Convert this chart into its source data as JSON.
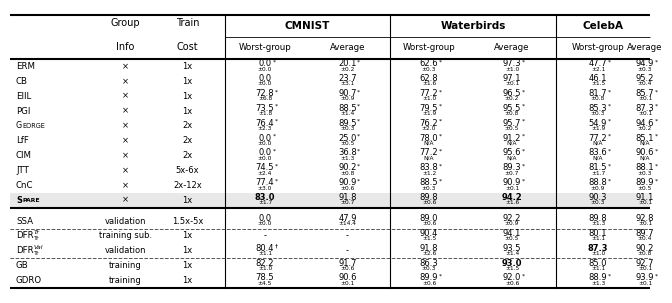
{
  "rows_section1": [
    [
      "ERM",
      "x",
      "1x",
      "0.0",
      "*",
      "±0.0",
      "20.1",
      "*",
      "±0.2",
      "62.6",
      "*",
      "±0.3",
      "97.3",
      "*",
      "±1.0",
      "47.7",
      "*",
      "±2.1",
      "94.9",
      "*",
      "±0.3"
    ],
    [
      "CB",
      "x",
      "1x",
      "0.0",
      "",
      "±0.0",
      "23.7",
      "",
      "±3.1",
      "62.8",
      "",
      "±1.6",
      "97.1",
      "",
      "±0.1",
      "46.1",
      "",
      "±1.5",
      "95.2",
      "",
      "±0.4"
    ],
    [
      "EIIL",
      "x",
      "1x",
      "72.8",
      "*",
      "±6.8",
      "90.7",
      "*",
      "±0.9",
      "77.2",
      "*",
      "±1.0",
      "96.5",
      "*",
      "±0.2",
      "81.7",
      "*",
      "±0.8",
      "85.7",
      "*",
      "±0.1"
    ],
    [
      "PGI",
      "x",
      "1x",
      "73.5",
      "*",
      "±1.8",
      "88.5",
      "*",
      "±1.4",
      "79.5",
      "*",
      "±1.9",
      "95.5",
      "*",
      "±0.8",
      "85.3",
      "*",
      "±0.3",
      "87.3",
      "*",
      "±0.1"
    ],
    [
      "GEORGE",
      "x",
      "2x",
      "76.4",
      "*",
      "±2.3",
      "89.5",
      "*",
      "±0.3",
      "76.2",
      "*",
      "±2.0",
      "95.7",
      "*",
      "±0.5",
      "54.9",
      "*",
      "±1.9",
      "94.6",
      "*",
      "±0.2"
    ],
    [
      "LfF",
      "x",
      "2x",
      "0.0",
      "*",
      "±0.0",
      "25.0",
      "*",
      "±0.5",
      "78.0",
      "*",
      "N/A",
      "91.2",
      "*",
      "N/A",
      "77.2",
      "*",
      "N/A",
      "85.1",
      "*",
      "N/A"
    ],
    [
      "CIM",
      "x",
      "2x",
      "0.0",
      "*",
      "±0.0",
      "36.8",
      "*",
      "±1.3",
      "77.2",
      "*",
      "N/A",
      "95.6",
      "*",
      "N/A",
      "83.6",
      "*",
      "N/A",
      "90.6",
      "*",
      "N/A"
    ],
    [
      "JTT",
      "x",
      "5x-6x",
      "74.5",
      "*",
      "±2.4",
      "90.2",
      "*",
      "±0.8",
      "83.8",
      "*",
      "±1.2",
      "89.3",
      "*",
      "±0.7",
      "81.5",
      "*",
      "±1.7",
      "88.1",
      "*",
      "±0.3"
    ],
    [
      "CnC",
      "x",
      "2x-12x",
      "77.4",
      "*",
      "±3.0",
      "90.9",
      "*",
      "±0.6",
      "88.5",
      "*",
      "±0.3",
      "90.9",
      "*",
      "±0.1",
      "88.8",
      "*",
      "±0.9",
      "89.9",
      "*",
      "±0.5"
    ],
    [
      "SPARE",
      "x",
      "1x",
      "83.0",
      "",
      "±1.7",
      "91.8",
      "",
      "±0.7",
      "89.8",
      "",
      "±0.6",
      "94.2",
      "",
      "±1.6",
      "90.3",
      "",
      "±0.3",
      "91.1",
      "",
      "±0.1"
    ]
  ],
  "spare_bold": [
    3,
    6,
    7
  ],
  "rows_section2": [
    [
      "SSA",
      "validation",
      "1.5x-5x",
      "0.0",
      "",
      "±0.0",
      "47.9",
      "",
      "±14.4",
      "89.0",
      "",
      "±0.6",
      "92.2",
      "",
      "±0.9",
      "89.8",
      "",
      "±1.3",
      "92.8",
      "",
      "±0.1"
    ],
    [
      "DFR_Tr^Tr",
      "training sub.",
      "1x",
      "-",
      "",
      "",
      "-",
      "",
      "",
      "90.4",
      "",
      "±1.5",
      "94.1",
      "",
      "±0.5",
      "80.1",
      "",
      "±1.1",
      "89.7",
      "",
      "±0.4"
    ],
    [
      "DFR_Tr^Val",
      "validation",
      "1x",
      "80.4",
      "†",
      "±1.1",
      "-",
      "",
      "",
      "91.8",
      "",
      "±2.6",
      "93.5",
      "",
      "±1.4",
      "87.3",
      "",
      "±1.0",
      "90.2",
      "",
      "±0.8"
    ],
    [
      "GB",
      "training",
      "1x",
      "82.2",
      "",
      "±1.0",
      "91.7",
      "",
      "±0.6",
      "86.3",
      "",
      "±0.3",
      "93.0",
      "",
      "±1.5",
      "85.0",
      "",
      "±1.1",
      "92.7",
      "",
      "±0.1"
    ],
    [
      "GDRO",
      "training",
      "1x",
      "78.5",
      "",
      "±4.5",
      "90.6",
      "",
      "±0.1",
      "89.9",
      "*",
      "±0.6",
      "92.0",
      "*",
      "±0.6",
      "88.9",
      "*",
      "±1.3",
      "93.9",
      "*",
      "±0.1"
    ]
  ],
  "ssa_bold_cols": [
    6
  ],
  "dfr_val_bold_cols": [
    4
  ],
  "gb_bold_cols": [
    3
  ],
  "spare_bold_data_cols": [
    0,
    3,
    6
  ],
  "bg_spare": "#e8e8e8"
}
